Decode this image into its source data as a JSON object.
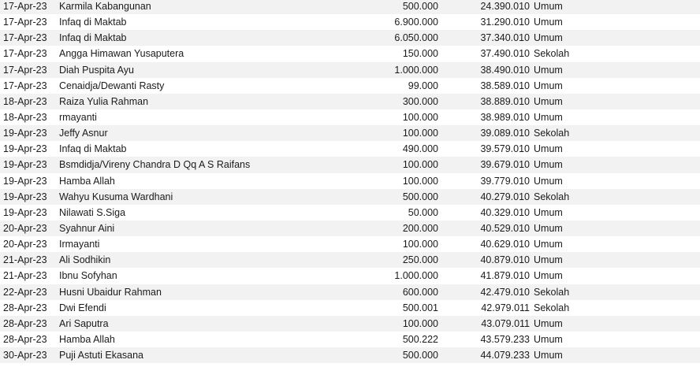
{
  "rows": [
    {
      "date": "17-Apr-23",
      "name": "Karmila Kabangunan",
      "amount": "500.000",
      "balance": "24.390.010",
      "category": "Umum"
    },
    {
      "date": "17-Apr-23",
      "name": "Infaq di Maktab",
      "amount": "6.900.000",
      "balance": "31.290.010",
      "category": "Umum"
    },
    {
      "date": "17-Apr-23",
      "name": "Infaq di Maktab",
      "amount": "6.050.000",
      "balance": "37.340.010",
      "category": "Umum"
    },
    {
      "date": "17-Apr-23",
      "name": "Angga Himawan Yusaputera",
      "amount": "150.000",
      "balance": "37.490.010",
      "category": "Sekolah"
    },
    {
      "date": "17-Apr-23",
      "name": "Diah Puspita Ayu",
      "amount": "1.000.000",
      "balance": "38.490.010",
      "category": "Umum"
    },
    {
      "date": "17-Apr-23",
      "name": "Cenaidja/Dewanti Rasty",
      "amount": "99.000",
      "balance": "38.589.010",
      "category": "Umum"
    },
    {
      "date": "18-Apr-23",
      "name": "Raiza Yulia Rahman",
      "amount": "300.000",
      "balance": "38.889.010",
      "category": "Umum"
    },
    {
      "date": "18-Apr-23",
      "name": "rmayanti",
      "amount": "100.000",
      "balance": "38.989.010",
      "category": "Umum"
    },
    {
      "date": "19-Apr-23",
      "name": "Jeffy Asnur",
      "amount": "100.000",
      "balance": "39.089.010",
      "category": "Sekolah"
    },
    {
      "date": "19-Apr-23",
      "name": "Infaq di Maktab",
      "amount": "490.000",
      "balance": "39.579.010",
      "category": "Umum"
    },
    {
      "date": "19-Apr-23",
      "name": "Bsmdidja/Vireny Chandra D Qq A S Raifans",
      "amount": "100.000",
      "balance": "39.679.010",
      "category": "Umum"
    },
    {
      "date": "19-Apr-23",
      "name": "Hamba Allah",
      "amount": "100.000",
      "balance": "39.779.010",
      "category": "Umum"
    },
    {
      "date": "19-Apr-23",
      "name": "Wahyu Kusuma Wardhani",
      "amount": "500.000",
      "balance": "40.279.010",
      "category": "Sekolah"
    },
    {
      "date": "19-Apr-23",
      "name": "Nilawati S.Siga",
      "amount": "50.000",
      "balance": "40.329.010",
      "category": "Umum"
    },
    {
      "date": "20-Apr-23",
      "name": "Syahnur Aini",
      "amount": "200.000",
      "balance": "40.529.010",
      "category": "Umum"
    },
    {
      "date": "20-Apr-23",
      "name": "Irmayanti",
      "amount": "100.000",
      "balance": "40.629.010",
      "category": "Umum"
    },
    {
      "date": "21-Apr-23",
      "name": "Ali Sodhikin",
      "amount": "250.000",
      "balance": "40.879.010",
      "category": "Umum"
    },
    {
      "date": "21-Apr-23",
      "name": "Ibnu Sofyhan",
      "amount": "1.000.000",
      "balance": "41.879.010",
      "category": "Umum"
    },
    {
      "date": "22-Apr-23",
      "name": "Husni Ubaidur Rahman",
      "amount": "600.000",
      "balance": "42.479.010",
      "category": "Sekolah"
    },
    {
      "date": "28-Apr-23",
      "name": "Dwi Efendi",
      "amount": "500.001",
      "balance": "42.979.011",
      "category": "Sekolah"
    },
    {
      "date": "28-Apr-23",
      "name": "Ari Saputra",
      "amount": "100.000",
      "balance": "43.079.011",
      "category": "Umum"
    },
    {
      "date": "28-Apr-23",
      "name": "Hamba Allah",
      "amount": "500.222",
      "balance": "43.579.233",
      "category": "Umum"
    },
    {
      "date": "30-Apr-23",
      "name": "Puji Astuti Ekasana",
      "amount": "500.000",
      "balance": "44.079.233",
      "category": "Umum"
    }
  ]
}
